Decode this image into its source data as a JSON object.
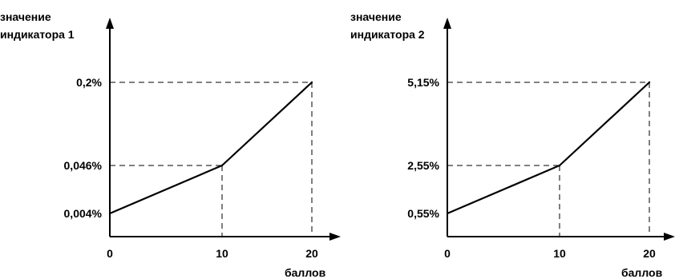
{
  "chart_data": [
    {
      "type": "line",
      "ylabel_lines": [
        "значение",
        "индикатора 1"
      ],
      "xlabel": "баллов",
      "x_ticks": [
        "0",
        "10",
        "20"
      ],
      "y_tick_labels": [
        "0,004%",
        "0,046%",
        "0,2%"
      ],
      "points": [
        {
          "x": 0,
          "y": 0.004
        },
        {
          "x": 10,
          "y": 0.046
        },
        {
          "x": 20,
          "y": 0.2
        }
      ],
      "grid": false,
      "guide_lines": "dashed"
    },
    {
      "type": "line",
      "ylabel_lines": [
        "значение",
        "индикатора 2"
      ],
      "xlabel": "баллов",
      "x_ticks": [
        "0",
        "10",
        "20"
      ],
      "y_tick_labels": [
        "0,55%",
        "2,55%",
        "5,15%"
      ],
      "points": [
        {
          "x": 0,
          "y": 0.55
        },
        {
          "x": 10,
          "y": 2.55
        },
        {
          "x": 20,
          "y": 5.15
        }
      ],
      "grid": false,
      "guide_lines": "dashed"
    }
  ]
}
